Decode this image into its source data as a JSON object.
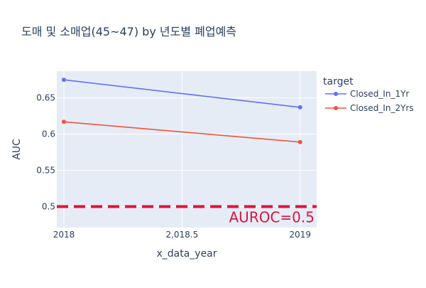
{
  "chart_data": {
    "type": "line",
    "title": "도매 및 소매업(45~47) by 년도별 폐업예측",
    "xlabel": "x_data_year",
    "ylabel": "AUC",
    "x": [
      2018,
      2019
    ],
    "xlim": [
      2017.97,
      2019.07
    ],
    "ylim": [
      0.471,
      0.687
    ],
    "x_ticks": [
      2018,
      2018.5,
      2019
    ],
    "x_tick_labels": [
      "2018",
      "2,018.5",
      "2019"
    ],
    "y_ticks": [
      0.5,
      0.55,
      0.6,
      0.65
    ],
    "y_tick_labels": [
      "0.5",
      "0.55",
      "0.6",
      "0.65"
    ],
    "grid": true,
    "legend": {
      "title": "target",
      "placement": "top-right outside"
    },
    "series": [
      {
        "name": "Closed_In_1Yr",
        "values": [
          0.675,
          0.637
        ],
        "color": "#636efa"
      },
      {
        "name": "Closed_In_2Yrs",
        "values": [
          0.617,
          0.589
        ],
        "color": "#ef553b"
      }
    ],
    "reference_line": {
      "y": 0.5,
      "label": "AUROC=0.5",
      "color": "#dc143c",
      "style": "dashed"
    },
    "colors": {
      "plot_background": "#e5ecf6",
      "grid": "#ffffff",
      "text": "#2a3f5f"
    }
  }
}
